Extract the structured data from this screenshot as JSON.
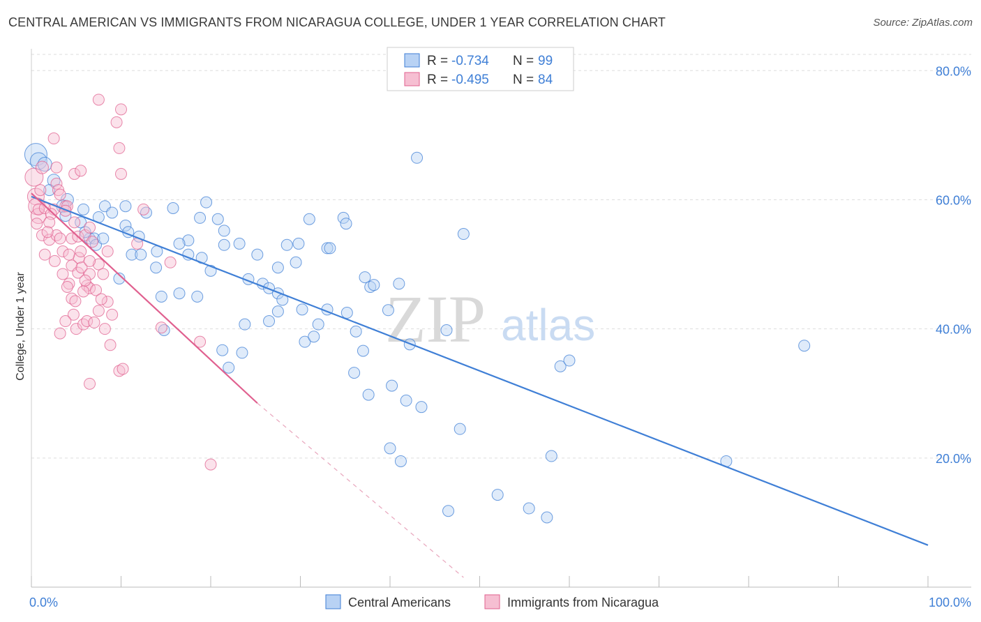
{
  "title": "CENTRAL AMERICAN VS IMMIGRANTS FROM NICARAGUA COLLEGE, UNDER 1 YEAR CORRELATION CHART",
  "source": "Source: ZipAtlas.com",
  "watermark": {
    "zip": "ZIP",
    "atlas": "atlas"
  },
  "colors": {
    "blue": "#3f7fd6",
    "blue_fill": "#b8d2f4",
    "pink": "#e0608f",
    "pink_fill": "#f6bfd2",
    "grid": "#dddddd"
  },
  "legend": {
    "rows": [
      {
        "r_label": "R =",
        "r_value": "-0.734",
        "n_label": "N =",
        "n_value": "99"
      },
      {
        "r_label": "R =",
        "r_value": "-0.495",
        "n_label": "N =",
        "n_value": "84"
      }
    ]
  },
  "chart_data": {
    "type": "scatter",
    "title": "CENTRAL AMERICAN VS IMMIGRANTS FROM NICARAGUA COLLEGE, UNDER 1 YEAR CORRELATION CHART",
    "xlabel": "",
    "ylabel": "College, Under 1 year",
    "xlim": [
      0,
      100
    ],
    "ylim": [
      0,
      85
    ],
    "x_tick_labels": [
      "0.0%",
      "100.0%"
    ],
    "y_tick_labels": [
      "20.0%",
      "40.0%",
      "60.0%",
      "80.0%"
    ],
    "y_ticks": [
      20,
      40,
      60,
      80
    ],
    "grid": true,
    "legend_position": "top-center",
    "series": [
      {
        "name": "Central Americans",
        "color": "#3f7fd6",
        "trend": {
          "x": [
            0,
            100
          ],
          "y": [
            60.5,
            6.5
          ],
          "dashed_extension": false
        },
        "points": [
          [
            0.5,
            67,
            16
          ],
          [
            0.8,
            66,
            12
          ],
          [
            1.5,
            65.5,
            10
          ],
          [
            2.5,
            63,
            9
          ],
          [
            2,
            61.5,
            8
          ],
          [
            4,
            60,
            9
          ],
          [
            3.5,
            59,
            9
          ],
          [
            5.8,
            58.5,
            8
          ],
          [
            3.8,
            57.5,
            8
          ],
          [
            8.2,
            59,
            8
          ],
          [
            9,
            58,
            8
          ],
          [
            7.5,
            57.3,
            8
          ],
          [
            12.8,
            58,
            8
          ],
          [
            15.8,
            58.7,
            8
          ],
          [
            10.5,
            56,
            8
          ],
          [
            5.5,
            56.5,
            8
          ],
          [
            10.8,
            55,
            8
          ],
          [
            12,
            54.3,
            8
          ],
          [
            6.5,
            54,
            8
          ],
          [
            7,
            54,
            8
          ],
          [
            7.2,
            53,
            8
          ],
          [
            14,
            52,
            8
          ],
          [
            11.2,
            51.5,
            8
          ],
          [
            12.2,
            51.5,
            8
          ],
          [
            17.5,
            53.7,
            8
          ],
          [
            16.5,
            53.2,
            8
          ],
          [
            17.5,
            51.5,
            8
          ],
          [
            19,
            51,
            8
          ],
          [
            20,
            49,
            8
          ],
          [
            13.9,
            49.5,
            8
          ],
          [
            9.8,
            47.8,
            8
          ],
          [
            19.5,
            59.6,
            8
          ],
          [
            18.8,
            57.2,
            8
          ],
          [
            20.8,
            57,
            8
          ],
          [
            21.5,
            55.2,
            8
          ],
          [
            21.5,
            53,
            8
          ],
          [
            23.2,
            53.2,
            8
          ],
          [
            25.2,
            51.5,
            8
          ],
          [
            28.5,
            53,
            8
          ],
          [
            29.8,
            53.2,
            8
          ],
          [
            29.5,
            50.3,
            8
          ],
          [
            34.8,
            57.2,
            8
          ],
          [
            31,
            57,
            8
          ],
          [
            33,
            52.5,
            8
          ],
          [
            35.1,
            56.3,
            8
          ],
          [
            24.2,
            47.7,
            8
          ],
          [
            25.8,
            47,
            8
          ],
          [
            26.5,
            46.3,
            8
          ],
          [
            27.5,
            45.5,
            8
          ],
          [
            28,
            44.5,
            8
          ],
          [
            27.5,
            42.7,
            8
          ],
          [
            26.5,
            41.2,
            8
          ],
          [
            30.2,
            43,
            8
          ],
          [
            33,
            43,
            8
          ],
          [
            35.2,
            42.5,
            8
          ],
          [
            30.5,
            38,
            8
          ],
          [
            31.5,
            38.8,
            8
          ],
          [
            32,
            40.7,
            8
          ],
          [
            36.2,
            39.6,
            8
          ],
          [
            37,
            36.6,
            8
          ],
          [
            37.2,
            48,
            8
          ],
          [
            37.8,
            46.5,
            8
          ],
          [
            38.2,
            46.8,
            8
          ],
          [
            41,
            47,
            8
          ],
          [
            39.8,
            42.9,
            8
          ],
          [
            42.2,
            37.6,
            8
          ],
          [
            46.3,
            39.8,
            8
          ],
          [
            36,
            33.2,
            8
          ],
          [
            21.3,
            36.7,
            8
          ],
          [
            23.5,
            36.3,
            8
          ],
          [
            22,
            34,
            8
          ],
          [
            16.5,
            45.5,
            8
          ],
          [
            18.5,
            45,
            8
          ],
          [
            14.5,
            45,
            8
          ],
          [
            14.8,
            39.8,
            8
          ],
          [
            23.8,
            40.7,
            8
          ],
          [
            37.6,
            29.8,
            8
          ],
          [
            40.2,
            31.2,
            8
          ],
          [
            41.8,
            28.9,
            8
          ],
          [
            43.5,
            27.9,
            8
          ],
          [
            43,
            66.5,
            8
          ],
          [
            48.2,
            54.7,
            8
          ],
          [
            47.8,
            24.5,
            8
          ],
          [
            40,
            21.5,
            8
          ],
          [
            41.2,
            19.5,
            8
          ],
          [
            58,
            20.3,
            8
          ],
          [
            59,
            34.2,
            8
          ],
          [
            60,
            35.1,
            8
          ],
          [
            86.2,
            37.4,
            8
          ],
          [
            77.5,
            19.5,
            8
          ],
          [
            52,
            14.3,
            8
          ],
          [
            46.5,
            11.8,
            8
          ],
          [
            55.5,
            12.2,
            8
          ],
          [
            57.5,
            10.8,
            8
          ],
          [
            33.3,
            52.5,
            8
          ],
          [
            10.5,
            59,
            8
          ],
          [
            8,
            54,
            8
          ],
          [
            6,
            55,
            8
          ],
          [
            27.5,
            49.5,
            8
          ]
        ]
      },
      {
        "name": "Immigrants from Nicaragua",
        "color": "#e0608f",
        "trend": {
          "x": [
            0,
            25.2
          ],
          "y": [
            61,
            28.5
          ],
          "dashed_extension": true,
          "dash_to": [
            48.2,
            1.5
          ]
        },
        "points": [
          [
            0.3,
            63.5,
            13
          ],
          [
            0.5,
            60.5,
            12
          ],
          [
            0.6,
            59,
            12
          ],
          [
            0.8,
            57.5,
            11
          ],
          [
            1.2,
            65,
            9
          ],
          [
            2.5,
            69.5,
            8
          ],
          [
            2.8,
            62.5,
            8
          ],
          [
            2.8,
            65,
            8
          ],
          [
            3,
            61.5,
            8
          ],
          [
            3.2,
            60.8,
            8
          ],
          [
            3.8,
            59,
            8
          ],
          [
            2.5,
            58.5,
            8
          ],
          [
            4,
            59,
            8
          ],
          [
            4.8,
            64,
            8
          ],
          [
            5.5,
            64.5,
            8
          ],
          [
            7.5,
            75.5,
            8
          ],
          [
            9.5,
            72,
            8
          ],
          [
            9.8,
            68,
            8
          ],
          [
            10,
            64,
            8
          ],
          [
            10,
            74,
            8
          ],
          [
            1.2,
            54.5,
            8
          ],
          [
            1.5,
            51.5,
            8
          ],
          [
            2,
            53.8,
            8
          ],
          [
            2.8,
            54.5,
            8
          ],
          [
            3.5,
            52,
            8
          ],
          [
            4.5,
            54,
            8
          ],
          [
            5.2,
            54.3,
            8
          ],
          [
            6,
            54.5,
            8
          ],
          [
            6.5,
            55.7,
            8
          ],
          [
            5.3,
            51,
            8
          ],
          [
            4.5,
            49.8,
            8
          ],
          [
            5.2,
            48.7,
            8
          ],
          [
            5.6,
            49.5,
            8
          ],
          [
            4.2,
            47,
            8
          ],
          [
            3.5,
            48.5,
            8
          ],
          [
            6.2,
            46.7,
            8
          ],
          [
            6.5,
            46.3,
            8
          ],
          [
            7.2,
            46,
            8
          ],
          [
            6.5,
            48.5,
            8
          ],
          [
            4.5,
            44.7,
            8
          ],
          [
            4.7,
            42.2,
            8
          ],
          [
            3.8,
            41.2,
            8
          ],
          [
            3.2,
            39.3,
            8
          ],
          [
            5,
            40,
            8
          ],
          [
            5.8,
            40.7,
            8
          ],
          [
            6.2,
            41.2,
            8
          ],
          [
            7.5,
            42.8,
            8
          ],
          [
            8.5,
            44.2,
            8
          ],
          [
            7.8,
            44.6,
            8
          ],
          [
            8.2,
            40,
            8
          ],
          [
            8.8,
            37.5,
            8
          ],
          [
            9.8,
            33.5,
            8
          ],
          [
            10.2,
            33.8,
            8
          ],
          [
            6.5,
            31.5,
            8
          ],
          [
            15.5,
            50.3,
            8
          ],
          [
            14.5,
            40.2,
            8
          ],
          [
            18.8,
            38,
            8
          ],
          [
            20,
            19,
            8
          ],
          [
            11.8,
            53.2,
            8
          ],
          [
            12.5,
            58.5,
            8
          ],
          [
            0.8,
            58.5,
            8
          ],
          [
            1.5,
            58.7,
            8
          ],
          [
            1,
            61.5,
            8
          ],
          [
            2.2,
            57.8,
            8
          ],
          [
            3.8,
            58.3,
            8
          ],
          [
            4.8,
            56.5,
            8
          ],
          [
            5.5,
            52,
            8
          ],
          [
            2,
            56.5,
            8
          ],
          [
            6.8,
            53.5,
            8
          ],
          [
            7.5,
            50,
            8
          ],
          [
            8,
            48.5,
            8
          ],
          [
            3.2,
            54,
            8
          ],
          [
            1.8,
            55,
            8
          ],
          [
            2.6,
            50.5,
            8
          ],
          [
            4.2,
            51.5,
            8
          ],
          [
            6,
            47.5,
            8
          ],
          [
            5.8,
            45.8,
            8
          ],
          [
            8.5,
            52,
            8
          ],
          [
            6.5,
            50.5,
            8
          ],
          [
            4,
            46.5,
            8
          ],
          [
            4.9,
            44.3,
            8
          ],
          [
            7,
            41,
            8
          ],
          [
            9,
            42.2,
            8
          ],
          [
            0.6,
            56.3,
            8
          ]
        ]
      }
    ]
  },
  "bottom_legend": [
    {
      "label": "Central Americans"
    },
    {
      "label": "Immigrants from Nicaragua"
    }
  ]
}
